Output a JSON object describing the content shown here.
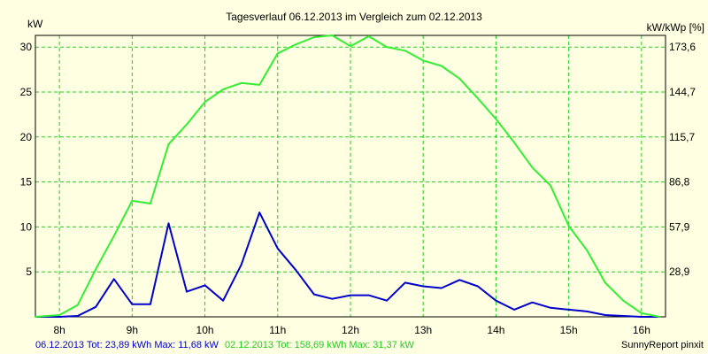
{
  "chart_data": {
    "type": "line",
    "title": "Tagesverlauf 06.12.2013 im Vergleich zum 02.12.2013",
    "ylabel_left": "kW",
    "ylabel_right": "kW/kWp [%]",
    "x_ticks": [
      "8h",
      "9h",
      "10h",
      "11h",
      "12h",
      "13h",
      "14h",
      "15h",
      "16h"
    ],
    "y_ticks_left": [
      "5",
      "10",
      "15",
      "20",
      "25",
      "30"
    ],
    "y_ticks_right": [
      "28,9",
      "57,9",
      "86,8",
      "115,7",
      "144,7",
      "173,6"
    ],
    "xlim": [
      7.67,
      16.33
    ],
    "ylim": [
      0,
      31.3
    ],
    "grid": true,
    "series": [
      {
        "name": "06.12.2013",
        "color": "#0000cc",
        "x": [
          7.67,
          8.0,
          8.25,
          8.5,
          8.75,
          9.0,
          9.25,
          9.5,
          9.75,
          10.0,
          10.25,
          10.5,
          10.75,
          11.0,
          11.25,
          11.5,
          11.75,
          12.0,
          12.25,
          12.5,
          12.75,
          13.0,
          13.25,
          13.5,
          13.75,
          14.0,
          14.25,
          14.5,
          14.75,
          15.0,
          15.25,
          15.5,
          15.75,
          16.0,
          16.25
        ],
        "y": [
          0,
          0,
          0.1,
          1.1,
          4.2,
          1.4,
          1.4,
          10.4,
          2.8,
          3.5,
          1.8,
          5.8,
          11.6,
          7.6,
          5.2,
          2.5,
          2.0,
          2.4,
          2.4,
          1.8,
          3.8,
          3.4,
          3.2,
          4.1,
          3.4,
          1.8,
          0.8,
          1.6,
          1.0,
          0.8,
          0.6,
          0.2,
          0.1,
          0,
          0
        ]
      },
      {
        "name": "02.12.2013",
        "color": "#33ee33",
        "x": [
          7.67,
          8.0,
          8.25,
          8.5,
          8.75,
          9.0,
          9.25,
          9.5,
          9.75,
          10.0,
          10.25,
          10.5,
          10.75,
          11.0,
          11.25,
          11.5,
          11.75,
          12.0,
          12.25,
          12.5,
          12.75,
          13.0,
          13.25,
          13.5,
          13.75,
          14.0,
          14.25,
          14.5,
          14.75,
          15.0,
          15.25,
          15.5,
          15.75,
          16.0,
          16.25
        ],
        "y": [
          0,
          0.2,
          1.3,
          5.3,
          9.0,
          12.9,
          12.6,
          19.2,
          21.4,
          23.9,
          25.3,
          26.0,
          25.8,
          29.3,
          30.3,
          31.1,
          31.3,
          30.1,
          31.2,
          30.0,
          29.6,
          28.5,
          27.9,
          26.5,
          24.3,
          22.0,
          19.4,
          16.6,
          14.6,
          10.1,
          7.4,
          3.8,
          1.8,
          0.4,
          0
        ]
      }
    ]
  },
  "footer": {
    "series1_text": "06.12.2013 Tot: 23,89 kWh Max: 11,68 kW",
    "series2_text": "02.12.2013 Tot: 158,69 kWh Max: 31,37 kW",
    "credit": "SunnyReport pinxit"
  },
  "colors": {
    "background": "#ffffe1",
    "plot_background": "#ffffe1",
    "grid": "#22cc22",
    "axis": "#000000",
    "footer_series1": "#0000cc",
    "footer_series2": "#22cc22"
  }
}
